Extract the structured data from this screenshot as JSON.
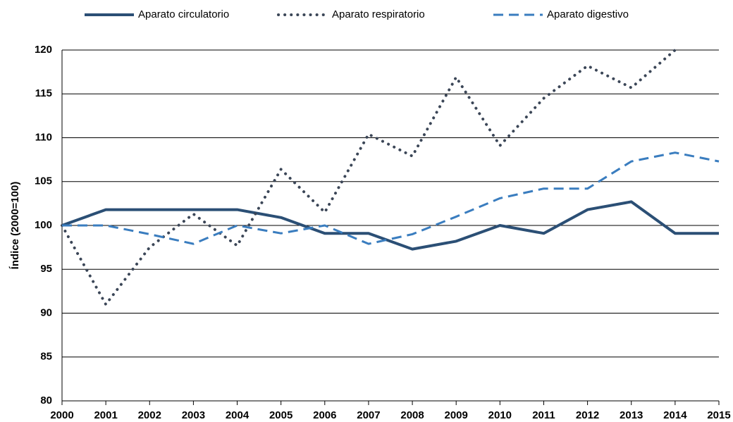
{
  "chart_data": {
    "type": "line",
    "y_label": "Índice (2000=100)",
    "x": [
      2000,
      2001,
      2002,
      2003,
      2004,
      2005,
      2006,
      2007,
      2008,
      2009,
      2010,
      2011,
      2012,
      2013,
      2014,
      2015
    ],
    "xlim": [
      2000,
      2015
    ],
    "xticks": [
      2000,
      2001,
      2002,
      2003,
      2004,
      2005,
      2006,
      2007,
      2008,
      2009,
      2010,
      2011,
      2012,
      2013,
      2014,
      2015
    ],
    "ylim": [
      80,
      120
    ],
    "yticks": [
      80,
      85,
      90,
      95,
      100,
      105,
      110,
      115,
      120
    ],
    "grid": true,
    "legend": "top",
    "series": [
      {
        "name": "Aparato circulatorio",
        "color": "#2b4f75",
        "style": "solid",
        "values": [
          100,
          101.8,
          101.8,
          101.8,
          101.8,
          100.9,
          99.1,
          99.1,
          97.3,
          98.2,
          100,
          99.1,
          101.8,
          102.7,
          99.1,
          99.1
        ]
      },
      {
        "name": "Aparato respiratorio",
        "color": "#3b4657",
        "style": "dotted",
        "values": [
          100,
          91,
          97.5,
          101.3,
          97.7,
          106.4,
          101.5,
          110.4,
          107.9,
          116.9,
          109.1,
          114.5,
          118.2,
          115.7,
          120,
          null
        ]
      },
      {
        "name": "Aparato digestivo",
        "color": "#3a7dbf",
        "style": "dashed",
        "values": [
          100,
          100,
          99,
          97.9,
          100,
          99.1,
          100,
          97.9,
          99,
          101,
          103.1,
          104.2,
          104.2,
          107.3,
          108.3,
          107.3
        ]
      }
    ]
  }
}
